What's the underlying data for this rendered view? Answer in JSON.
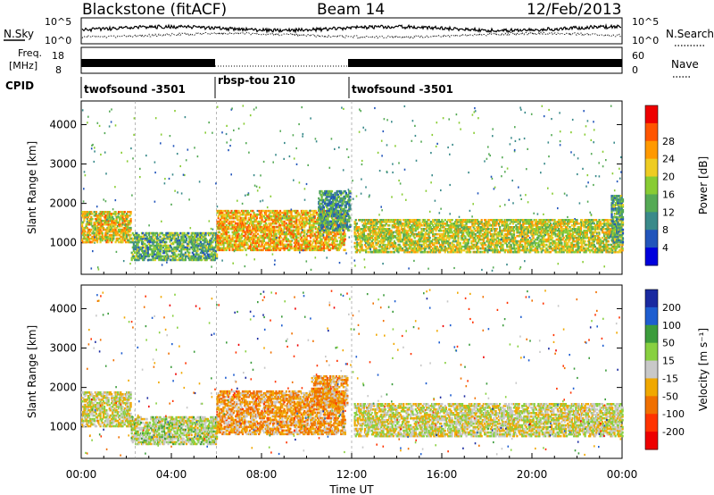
{
  "header": {
    "title": "Blackstone (fitACF)",
    "beam": "Beam 14",
    "date": "12/Feb/2013"
  },
  "noise_panel": {
    "left_label": "N.Sky",
    "right_label": "N.Search",
    "ticks_left": [
      "10^5",
      "10^0"
    ],
    "ticks_right": [
      "10^5",
      "10^0"
    ]
  },
  "freq_panel": {
    "left_label_1": "Freq.",
    "left_label_2": "[MHz]",
    "right_label": "Nave",
    "ticks_left": [
      "18",
      "8"
    ],
    "ticks_right": [
      "60",
      "0"
    ]
  },
  "cpid": {
    "label": "CPID",
    "segments": [
      "twofsound -3501",
      "rbsp-tou 210",
      "twofsound -3501"
    ]
  },
  "xaxis": {
    "label": "Time UT",
    "ticks": [
      "00:00",
      "04:00",
      "08:00",
      "12:00",
      "16:00",
      "20:00",
      "00:00"
    ]
  },
  "chart_data": [
    {
      "type": "heatmap",
      "title": "",
      "xlabel": "",
      "ylabel": "Slant Range [km]",
      "xlim": [
        0,
        24
      ],
      "ylim": [
        200,
        4600
      ],
      "yticks": [
        "1000",
        "2000",
        "3000",
        "4000"
      ],
      "colorbar": {
        "label": "Power [dB]",
        "ticks": [
          "4",
          "8",
          "12",
          "16",
          "20",
          "24",
          "28"
        ],
        "colors": [
          "#0000dd",
          "#2255bb",
          "#3a8a8a",
          "#55aa55",
          "#88cc33",
          "#eecc22",
          "#ff9900",
          "#ff5500",
          "#ee0000"
        ]
      },
      "bands": [
        {
          "t0": 0.0,
          "t1": 2.2,
          "r0": 1000,
          "r1": 1800,
          "value": 20
        },
        {
          "t0": 2.2,
          "t1": 6.0,
          "r0": 550,
          "r1": 1250,
          "value": 12
        },
        {
          "t0": 6.0,
          "t1": 11.7,
          "r0": 800,
          "r1": 1800,
          "value": 22
        },
        {
          "t0": 10.5,
          "t1": 11.9,
          "r0": 1300,
          "r1": 2300,
          "value": 10
        },
        {
          "t0": 12.1,
          "t1": 24.0,
          "r0": 750,
          "r1": 1600,
          "value": 18
        },
        {
          "t0": 23.5,
          "t1": 24.0,
          "r0": 1000,
          "r1": 2200,
          "value": 12
        }
      ]
    },
    {
      "type": "heatmap",
      "title": "",
      "xlabel": "Time UT",
      "ylabel": "Slant Range [km]",
      "xlim": [
        0,
        24
      ],
      "ylim": [
        200,
        4600
      ],
      "yticks": [
        "1000",
        "2000",
        "3000",
        "4000"
      ],
      "colorbar": {
        "label": "Velocity [m s⁻¹]",
        "ticks": [
          "200",
          "100",
          "50",
          "15",
          "-15",
          "-50",
          "-100",
          "-200"
        ],
        "colors": [
          "#1a2aa0",
          "#1e5ed0",
          "#3c9c3c",
          "#88d040",
          "#c8c8c8",
          "#f0a800",
          "#f07000",
          "#ff3300",
          "#ee0000"
        ]
      },
      "bands": [
        {
          "t0": 0.0,
          "t1": 2.2,
          "r0": 1000,
          "r1": 1900,
          "value": 0
        },
        {
          "t0": 2.2,
          "t1": 6.0,
          "r0": 550,
          "r1": 1250,
          "value": 20
        },
        {
          "t0": 6.0,
          "t1": 11.7,
          "r0": 800,
          "r1": 1900,
          "value": -60
        },
        {
          "t0": 10.2,
          "t1": 11.8,
          "r0": 1500,
          "r1": 2300,
          "value": -60
        },
        {
          "t0": 12.1,
          "t1": 24.0,
          "r0": 750,
          "r1": 1600,
          "value": 0
        }
      ]
    }
  ]
}
